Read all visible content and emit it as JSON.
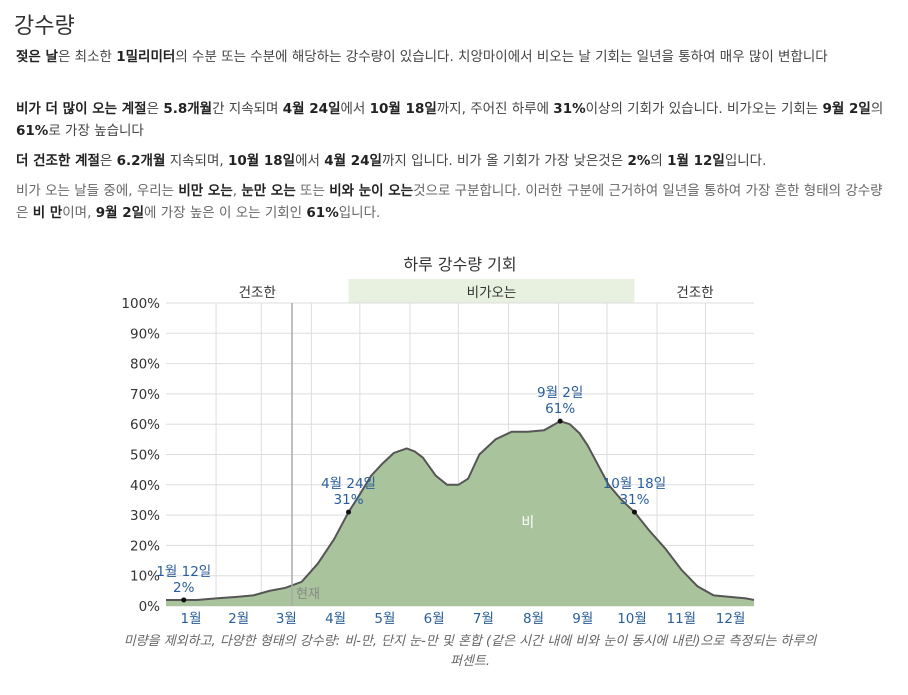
{
  "section": {
    "title": "강수량",
    "p1": [
      {
        "t": "젖은 날",
        "b": true
      },
      {
        "t": "은 최소한 ",
        "b": false
      },
      {
        "t": "1밀리미터",
        "b": true
      },
      {
        "t": "의 수분 또는 수분에 해당하는 강수량이 있습니다. 치앙마이에서 비오는 날 기회는 일년을 통하여 매우 많이 변합니다",
        "b": false
      }
    ],
    "p2": [
      {
        "t": "비가 더 많이 오는 계절",
        "b": true
      },
      {
        "t": "은 ",
        "b": false
      },
      {
        "t": "5.8개월",
        "b": true
      },
      {
        "t": "간 지속되며 ",
        "b": false
      },
      {
        "t": "4월 24일",
        "b": true
      },
      {
        "t": "에서 ",
        "b": false
      },
      {
        "t": "10월 18일",
        "b": true
      },
      {
        "t": "까지, 주어진 하루에 ",
        "b": false
      },
      {
        "t": "31%",
        "b": true
      },
      {
        "t": "이상의 기회가 있습니다. 비가오는 기회는 ",
        "b": false
      },
      {
        "t": "9월 2일",
        "b": true
      },
      {
        "t": "의 ",
        "b": false
      },
      {
        "t": "61%",
        "b": true
      },
      {
        "t": "로 가장 높습니다",
        "b": false
      }
    ],
    "p3": [
      {
        "t": "더 건조한 계절",
        "b": true
      },
      {
        "t": "은 ",
        "b": false
      },
      {
        "t": "6.2개월",
        "b": true
      },
      {
        "t": " 지속되며, ",
        "b": false
      },
      {
        "t": "10월 18일",
        "b": true
      },
      {
        "t": "에서 ",
        "b": false
      },
      {
        "t": "4월 24일",
        "b": true
      },
      {
        "t": "까지 입니다. 비가 올 기회가 가장 낮은것은 ",
        "b": false
      },
      {
        "t": "2%",
        "b": true
      },
      {
        "t": "의 ",
        "b": false
      },
      {
        "t": "1월 12일",
        "b": true
      },
      {
        "t": "입니다.",
        "b": false
      }
    ],
    "p4": [
      {
        "t": "비가 오는 날들 중에, 우리는 ",
        "b": false
      },
      {
        "t": "비만 오는",
        "b": true
      },
      {
        "t": ", ",
        "b": false
      },
      {
        "t": "눈만 오는",
        "b": true
      },
      {
        "t": " 또는 ",
        "b": false
      },
      {
        "t": "비와 눈이 오는",
        "b": true
      },
      {
        "t": "것으로 구분합니다. 이러한 구분에 근거하여 일년을 통하여 가장 흔한 형태의 강수량은 ",
        "b": false
      },
      {
        "t": "비 만",
        "b": true
      },
      {
        "t": "이며, ",
        "b": false
      },
      {
        "t": "9월 2일",
        "b": true
      },
      {
        "t": "에 가장 높은 이 오는 기회인 ",
        "b": false
      },
      {
        "t": "61%",
        "b": true
      },
      {
        "t": "입니다.",
        "b": false
      }
    ]
  },
  "chart_data": {
    "type": "area",
    "title": "하루 강수량 기회",
    "xlabel": "",
    "ylabel": "",
    "ylim": [
      0,
      100
    ],
    "yticks": [
      "0%",
      "10%",
      "20%",
      "30%",
      "40%",
      "50%",
      "60%",
      "70%",
      "80%",
      "90%",
      "100%"
    ],
    "months": [
      "1월",
      "2월",
      "3월",
      "4월",
      "5월",
      "6월",
      "7월",
      "8월",
      "9월",
      "10월",
      "11월",
      "12월"
    ],
    "grid": true,
    "seasons": [
      {
        "label": "건조한",
        "start_day": 1,
        "end_day": 114,
        "wet": false
      },
      {
        "label": "비가오는",
        "start_day": 114,
        "end_day": 291,
        "wet": true
      },
      {
        "label": "건조한",
        "start_day": 291,
        "end_day": 366,
        "wet": false
      }
    ],
    "now_day": 79,
    "now_label": "현재",
    "area_label": "비",
    "series": [
      {
        "name": "비",
        "x": [
          1,
          12,
          20,
          32,
          45,
          55,
          65,
          75,
          85,
          95,
          105,
          114,
          120,
          128,
          135,
          142,
          150,
          155,
          160,
          168,
          175,
          182,
          188,
          195,
          205,
          215,
          225,
          235,
          240,
          245,
          251,
          257,
          262,
          268,
          275,
          283,
          291,
          300,
          310,
          320,
          330,
          340,
          350,
          360,
          365
        ],
        "y": [
          2,
          2,
          2,
          2.5,
          3,
          3.5,
          5,
          6,
          8,
          14,
          22,
          31,
          36,
          43,
          47,
          50.5,
          52,
          51,
          49,
          43,
          40,
          40,
          42,
          50,
          55,
          57.5,
          57.5,
          58,
          59.5,
          61,
          60,
          57,
          53,
          47,
          40,
          35,
          31,
          25,
          19,
          12,
          6.5,
          3.5,
          3,
          2.5,
          2
        ]
      }
    ],
    "annotations": [
      {
        "day": 12,
        "value": 2,
        "date": "1월 12일",
        "pct": "2%"
      },
      {
        "day": 114,
        "value": 31,
        "date": "4월 24일",
        "pct": "31%"
      },
      {
        "day": 245,
        "value": 61,
        "date": "9월 2일",
        "pct": "61%"
      },
      {
        "day": 291,
        "value": 31,
        "date": "10월 18일",
        "pct": "31%"
      }
    ],
    "colors": {
      "area": "#a9c39c",
      "line": "#555555",
      "wet_band": "#e8f0e0",
      "label": "#2a5e9a",
      "grid": "#dddddd"
    },
    "caption": "미량을 제외하고, 다양한 형태의 강수량: 비-만, 단지 눈-만 및 혼합 (같은 시간 내에 비와 눈이 동시에 내린)으로 측정되는 하루의 퍼센트."
  }
}
